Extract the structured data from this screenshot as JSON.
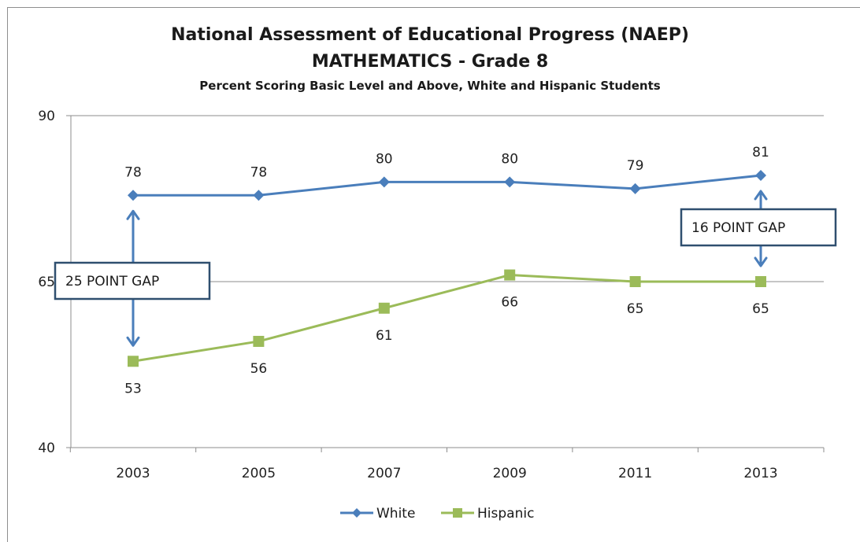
{
  "chart_data": {
    "type": "line",
    "title": "National Assessment of Educational Progress (NAEP)",
    "subtitle": "MATHEMATICS - Grade 8",
    "caption": "Percent Scoring Basic Level and Above, White and Hispanic Students",
    "categories": [
      "2003",
      "2005",
      "2007",
      "2009",
      "2011",
      "2013"
    ],
    "ylim": [
      40,
      90
    ],
    "yticks": [
      40,
      65,
      90
    ],
    "grid": "horizontal",
    "legend_position": "bottom",
    "series": [
      {
        "name": "White",
        "values": [
          78,
          78,
          80,
          80,
          79,
          81
        ],
        "color": "#4a7ebb",
        "marker": "diamond"
      },
      {
        "name": "Hispanic",
        "values": [
          53,
          56,
          61,
          66,
          65,
          65
        ],
        "color": "#9bbb59",
        "marker": "square"
      }
    ],
    "annotations": [
      {
        "text": "25 POINT GAP",
        "category": "2003",
        "from": 53,
        "to": 78
      },
      {
        "text": "16 POINT GAP",
        "category": "2013",
        "from": 65,
        "to": 81
      }
    ]
  }
}
